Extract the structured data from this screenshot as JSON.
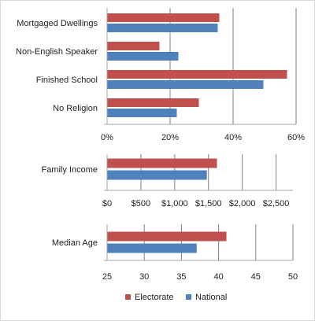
{
  "chart_data": [
    {
      "type": "bar",
      "orientation": "horizontal",
      "categories": [
        "Mortgaged Dwellings",
        "Non-English Speaker",
        "Finished School",
        "No Religion"
      ],
      "series": [
        {
          "name": "Electorate",
          "values": [
            35.5,
            16.5,
            57,
            29
          ]
        },
        {
          "name": "National",
          "values": [
            35,
            22.5,
            49.5,
            22
          ]
        }
      ],
      "xlim": [
        0,
        60
      ],
      "xticks": [
        "0%",
        "20%",
        "40%",
        "60%"
      ],
      "grid": true
    },
    {
      "type": "bar",
      "orientation": "horizontal",
      "categories": [
        "Family Income"
      ],
      "series": [
        {
          "name": "Electorate",
          "values": [
            1620
          ]
        },
        {
          "name": "National",
          "values": [
            1470
          ]
        }
      ],
      "xlim": [
        0,
        2750
      ],
      "xticks": [
        "$0",
        "$500",
        "$1,000",
        "$1,500",
        "$2,000",
        "$2,500"
      ],
      "grid": true
    },
    {
      "type": "bar",
      "orientation": "horizontal",
      "categories": [
        "Median Age"
      ],
      "series": [
        {
          "name": "Electorate",
          "values": [
            41
          ]
        },
        {
          "name": "National",
          "values": [
            37
          ]
        }
      ],
      "xlim": [
        25,
        50
      ],
      "xticks": [
        "25",
        "30",
        "35",
        "40",
        "45",
        "50"
      ],
      "grid": true
    }
  ],
  "legend": {
    "placement": "bottom",
    "items": [
      {
        "label": "Electorate",
        "color": "#c0504d"
      },
      {
        "label": "National",
        "color": "#4f81bd"
      }
    ]
  },
  "colors": {
    "electorate": "#c0504d",
    "national": "#4f81bd",
    "gridline": "#808080",
    "axis": "#a6a6a6"
  }
}
